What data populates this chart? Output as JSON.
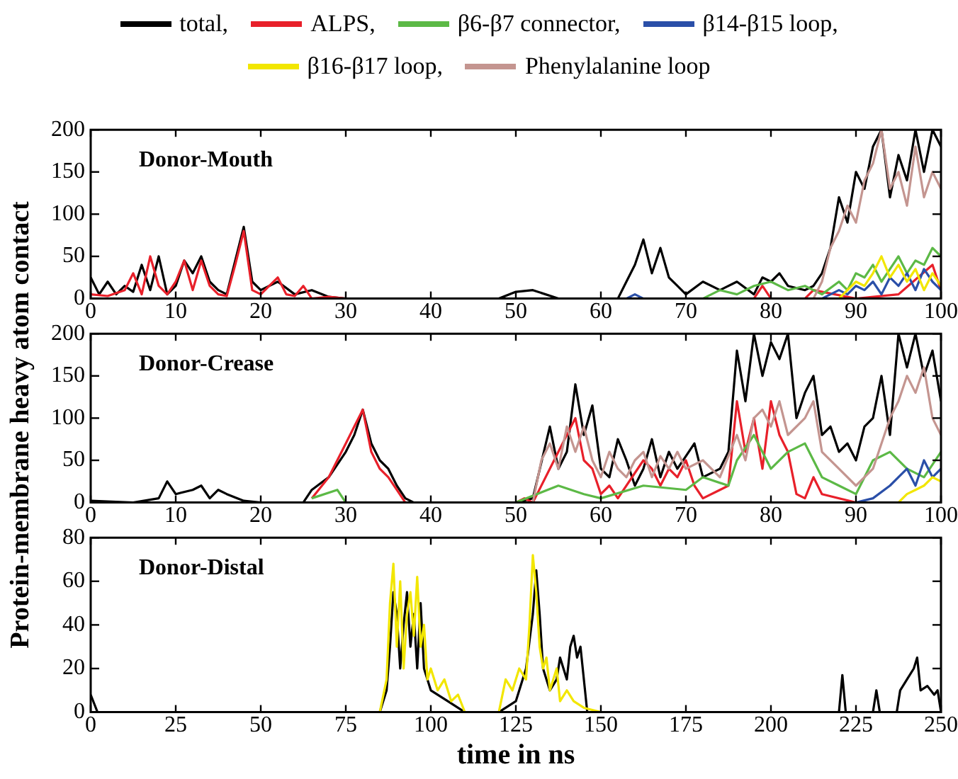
{
  "chart_data": [
    {
      "type": "line",
      "title": "Donor-Mouth",
      "legend": "top",
      "grid": false,
      "xlim": [
        0,
        100
      ],
      "xticks": [
        0,
        10,
        20,
        30,
        40,
        50,
        60,
        70,
        80,
        90,
        100
      ],
      "ylim": [
        0,
        200
      ],
      "yticks": [
        0,
        50,
        100,
        150,
        200
      ],
      "series": [
        {
          "name": "total,",
          "color": "#000000",
          "x": [
            0,
            1,
            2,
            3,
            4,
            5,
            6,
            7,
            8,
            9,
            10,
            11,
            12,
            13,
            14,
            15,
            16,
            17,
            18,
            19,
            20,
            22,
            24,
            26,
            28,
            30,
            35,
            40,
            45,
            48,
            50,
            52,
            55,
            60,
            62,
            63,
            64,
            65,
            66,
            67,
            68,
            69,
            70,
            72,
            74,
            76,
            78,
            79,
            80,
            81,
            82,
            84,
            85,
            86,
            87,
            88,
            89,
            90,
            91,
            92,
            93,
            94,
            95,
            96,
            97,
            98,
            99,
            100
          ],
          "values": [
            25,
            5,
            20,
            5,
            15,
            8,
            40,
            10,
            50,
            5,
            15,
            45,
            30,
            50,
            20,
            10,
            5,
            45,
            85,
            20,
            10,
            20,
            5,
            10,
            2,
            0,
            0,
            0,
            0,
            0,
            8,
            10,
            0,
            0,
            0,
            20,
            40,
            70,
            30,
            60,
            25,
            15,
            5,
            20,
            10,
            20,
            5,
            25,
            20,
            30,
            15,
            10,
            15,
            30,
            60,
            120,
            90,
            150,
            130,
            180,
            200,
            120,
            170,
            140,
            200,
            150,
            200,
            180
          ]
        },
        {
          "name": "ALPS,",
          "color": "#e8202a",
          "x": [
            0,
            2,
            4,
            5,
            6,
            7,
            8,
            9,
            10,
            11,
            12,
            13,
            14,
            15,
            16,
            17,
            18,
            19,
            20,
            21,
            22,
            23,
            24,
            25,
            26,
            28,
            30,
            78,
            79,
            80,
            84,
            85,
            90,
            95,
            99,
            100
          ],
          "values": [
            5,
            3,
            10,
            30,
            5,
            50,
            15,
            5,
            20,
            45,
            10,
            45,
            15,
            5,
            3,
            40,
            80,
            10,
            5,
            15,
            25,
            5,
            3,
            15,
            0,
            2,
            0,
            0,
            15,
            0,
            0,
            10,
            0,
            5,
            40,
            10
          ]
        },
        {
          "name": "β6-β7 connector,",
          "color": "#5cb946",
          "x": [
            72,
            74,
            76,
            78,
            80,
            82,
            84,
            86,
            88,
            89,
            90,
            91,
            92,
            93,
            94,
            95,
            96,
            97,
            98,
            99,
            100
          ],
          "values": [
            0,
            10,
            5,
            15,
            20,
            10,
            15,
            5,
            20,
            10,
            30,
            25,
            40,
            20,
            35,
            50,
            30,
            45,
            40,
            60,
            50
          ]
        },
        {
          "name": "β14-β15 loop,",
          "color": "#2a4fa8",
          "x": [
            63,
            64,
            65,
            86,
            88,
            89,
            90,
            91,
            92,
            93,
            94,
            95,
            96,
            97,
            98,
            99,
            100
          ],
          "values": [
            0,
            5,
            0,
            0,
            10,
            5,
            15,
            10,
            20,
            5,
            25,
            15,
            30,
            10,
            35,
            20,
            10
          ]
        },
        {
          "name": "β16-β17 loop,",
          "color": "#f2e600",
          "x": [
            88,
            89,
            90,
            91,
            92,
            93,
            94,
            95,
            96,
            97,
            98,
            99,
            100
          ],
          "values": [
            0,
            10,
            20,
            15,
            30,
            50,
            25,
            40,
            20,
            35,
            10,
            30,
            15
          ]
        },
        {
          "name": "Phenylalanine loop",
          "color": "#c49590",
          "x": [
            85,
            86,
            87,
            88,
            89,
            90,
            91,
            92,
            93,
            94,
            95,
            96,
            97,
            98,
            99,
            100
          ],
          "values": [
            0,
            20,
            60,
            80,
            110,
            90,
            140,
            160,
            200,
            130,
            150,
            110,
            180,
            120,
            150,
            130
          ]
        }
      ]
    },
    {
      "type": "line",
      "title": "Donor-Crease",
      "ylabel": "Protein-membrane heavy atom contact",
      "grid": false,
      "xlim": [
        0,
        100
      ],
      "xticks": [
        0,
        10,
        20,
        30,
        40,
        50,
        60,
        70,
        80,
        90,
        100
      ],
      "ylim": [
        0,
        200
      ],
      "yticks": [
        0,
        50,
        100,
        150,
        200
      ],
      "series": [
        {
          "color": "#000000",
          "x": [
            0,
            5,
            8,
            9,
            10,
            12,
            13,
            14,
            15,
            16,
            18,
            20,
            25,
            26,
            28,
            30,
            31,
            32,
            33,
            34,
            35,
            36,
            37,
            38,
            50,
            52,
            54,
            55,
            56,
            57,
            58,
            59,
            60,
            61,
            62,
            63,
            64,
            65,
            66,
            67,
            68,
            69,
            70,
            71,
            72,
            74,
            75,
            76,
            77,
            78,
            79,
            80,
            81,
            82,
            83,
            84,
            85,
            86,
            87,
            88,
            89,
            90,
            91,
            92,
            93,
            94,
            95,
            96,
            97,
            98,
            99,
            100
          ],
          "values": [
            2,
            0,
            5,
            25,
            10,
            15,
            20,
            5,
            15,
            10,
            2,
            0,
            0,
            15,
            30,
            60,
            80,
            110,
            70,
            50,
            40,
            20,
            5,
            0,
            0,
            5,
            90,
            40,
            60,
            140,
            80,
            115,
            40,
            30,
            75,
            50,
            20,
            40,
            75,
            30,
            60,
            40,
            55,
            70,
            30,
            40,
            60,
            180,
            120,
            200,
            150,
            190,
            170,
            200,
            100,
            130,
            150,
            80,
            90,
            60,
            70,
            50,
            90,
            100,
            150,
            80,
            200,
            160,
            200,
            150,
            180,
            120
          ]
        },
        {
          "color": "#e8202a",
          "x": [
            26,
            28,
            29,
            30,
            31,
            32,
            33,
            34,
            35,
            36,
            37,
            50,
            51,
            52,
            55,
            57,
            58,
            59,
            60,
            61,
            62,
            65,
            66,
            67,
            68,
            69,
            70,
            71,
            72,
            74,
            75,
            76,
            77,
            78,
            79,
            80,
            81,
            82,
            83,
            84,
            85,
            86,
            90
          ],
          "values": [
            5,
            30,
            50,
            70,
            90,
            110,
            60,
            40,
            30,
            15,
            0,
            0,
            5,
            0,
            60,
            100,
            50,
            40,
            10,
            20,
            5,
            50,
            40,
            20,
            40,
            30,
            50,
            20,
            5,
            15,
            20,
            120,
            60,
            100,
            40,
            120,
            80,
            60,
            10,
            5,
            30,
            10,
            0
          ]
        },
        {
          "color": "#5cb946",
          "x": [
            26,
            29,
            30,
            50,
            55,
            58,
            60,
            65,
            70,
            72,
            75,
            76,
            78,
            80,
            82,
            84,
            86,
            88,
            90,
            92,
            94,
            96,
            98,
            100
          ],
          "values": [
            5,
            15,
            0,
            0,
            20,
            10,
            5,
            20,
            15,
            30,
            20,
            50,
            80,
            40,
            60,
            70,
            30,
            20,
            10,
            50,
            60,
            40,
            30,
            60
          ]
        },
        {
          "color": "#2a4fa8",
          "x": [
            90,
            92,
            94,
            96,
            97,
            98,
            99,
            100
          ],
          "values": [
            0,
            5,
            20,
            40,
            20,
            50,
            30,
            40
          ]
        },
        {
          "color": "#f2e600",
          "x": [
            95,
            96,
            97,
            98,
            99,
            100
          ],
          "values": [
            0,
            10,
            15,
            20,
            30,
            25
          ]
        },
        {
          "color": "#c49590",
          "x": [
            52,
            53,
            54,
            55,
            56,
            57,
            58,
            59,
            60,
            61,
            62,
            63,
            64,
            65,
            66,
            67,
            68,
            69,
            70,
            72,
            74,
            76,
            77,
            78,
            79,
            80,
            81,
            82,
            84,
            85,
            86,
            88,
            90,
            92,
            94,
            95,
            96,
            97,
            98,
            99,
            100
          ],
          "values": [
            0,
            50,
            70,
            40,
            90,
            60,
            90,
            50,
            30,
            60,
            40,
            30,
            50,
            60,
            30,
            55,
            40,
            60,
            40,
            50,
            30,
            80,
            50,
            100,
            110,
            90,
            120,
            80,
            100,
            120,
            60,
            40,
            20,
            40,
            100,
            120,
            150,
            130,
            160,
            100,
            80
          ]
        }
      ]
    },
    {
      "type": "line",
      "title": "Donor-Distal",
      "xlabel": "time in ns",
      "grid": false,
      "xlim": [
        0,
        250
      ],
      "xticks": [
        0,
        25,
        50,
        75,
        100,
        125,
        150,
        175,
        200,
        225,
        250
      ],
      "ylim": [
        0,
        80
      ],
      "yticks": [
        0,
        20,
        40,
        60,
        80
      ],
      "series": [
        {
          "color": "#000000",
          "x": [
            0,
            2,
            85,
            87,
            88,
            89,
            90,
            91,
            92,
            93,
            94,
            95,
            96,
            97,
            98,
            100,
            105,
            110,
            120,
            125,
            128,
            130,
            131,
            132,
            133,
            135,
            137,
            138,
            140,
            141,
            142,
            143,
            144,
            145,
            146,
            220,
            221,
            222,
            230,
            231,
            232,
            237,
            238,
            240,
            242,
            243,
            244,
            246,
            248,
            249,
            250
          ],
          "values": [
            8,
            0,
            0,
            10,
            30,
            55,
            45,
            20,
            40,
            55,
            30,
            45,
            20,
            50,
            20,
            10,
            5,
            0,
            0,
            5,
            20,
            45,
            65,
            45,
            20,
            10,
            15,
            25,
            15,
            30,
            35,
            25,
            30,
            15,
            0,
            0,
            17,
            0,
            0,
            10,
            0,
            0,
            10,
            15,
            20,
            25,
            10,
            12,
            8,
            10,
            0
          ]
        },
        {
          "color": "#f2e600",
          "x": [
            85,
            87,
            88,
            89,
            90,
            91,
            92,
            93,
            94,
            95,
            96,
            97,
            98,
            99,
            100,
            102,
            104,
            106,
            108,
            110,
            120,
            122,
            124,
            126,
            128,
            129,
            130,
            131,
            132,
            133,
            134,
            135,
            136,
            137,
            138,
            140,
            142,
            145,
            150
          ],
          "values": [
            0,
            15,
            50,
            68,
            30,
            60,
            20,
            45,
            55,
            35,
            62,
            30,
            40,
            15,
            20,
            10,
            15,
            5,
            8,
            0,
            0,
            15,
            10,
            20,
            15,
            40,
            72,
            55,
            30,
            20,
            25,
            10,
            15,
            20,
            5,
            10,
            5,
            2,
            0
          ]
        }
      ]
    }
  ]
}
